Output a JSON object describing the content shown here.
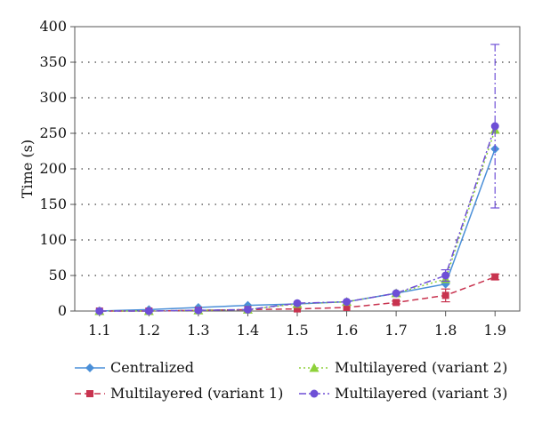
{
  "chart_data": {
    "type": "line",
    "xlabel": "",
    "ylabel": "Time (s)",
    "x": [
      1.1,
      1.2,
      1.3,
      1.4,
      1.5,
      1.6,
      1.7,
      1.8,
      1.9
    ],
    "x_tick_labels": [
      "1.1",
      "1.2",
      "1.3",
      "1.4",
      "1.5",
      "1.6",
      "1.7",
      "1.8",
      "1.9"
    ],
    "xlim": [
      1.05,
      1.95
    ],
    "ylim": [
      0,
      400
    ],
    "y_ticks": [
      0,
      50,
      100,
      150,
      200,
      250,
      300,
      350,
      400
    ],
    "grid": "horizontal dotted",
    "legend_position": "bottom",
    "series": [
      {
        "name": "Centralized",
        "color": "#4a8fd8",
        "dash": "solid",
        "marker": "diamond",
        "values": [
          0,
          2,
          5,
          8,
          10,
          13,
          25,
          38,
          228
        ]
      },
      {
        "name": "Multilayered (variant 1)",
        "color": "#c8334f",
        "dash": "dashed",
        "marker": "square",
        "values": [
          0,
          0,
          1,
          2,
          3,
          5,
          12,
          22,
          48
        ],
        "error": [
          0,
          0,
          0,
          0,
          0,
          0,
          2,
          9,
          4
        ]
      },
      {
        "name": "Multilayered (variant 2)",
        "color": "#8ed13a",
        "dash": "dotted",
        "marker": "triangle",
        "values": [
          0,
          0,
          1,
          2,
          10,
          13,
          25,
          45,
          255
        ]
      },
      {
        "name": "Multilayered (variant 3)",
        "color": "#6e4fd6",
        "dash": "dashdot",
        "marker": "circle",
        "values": [
          0,
          0,
          1,
          2,
          11,
          13,
          25,
          50,
          260
        ],
        "error": [
          0,
          0,
          0,
          0,
          0,
          0,
          0,
          8,
          115
        ]
      }
    ]
  }
}
